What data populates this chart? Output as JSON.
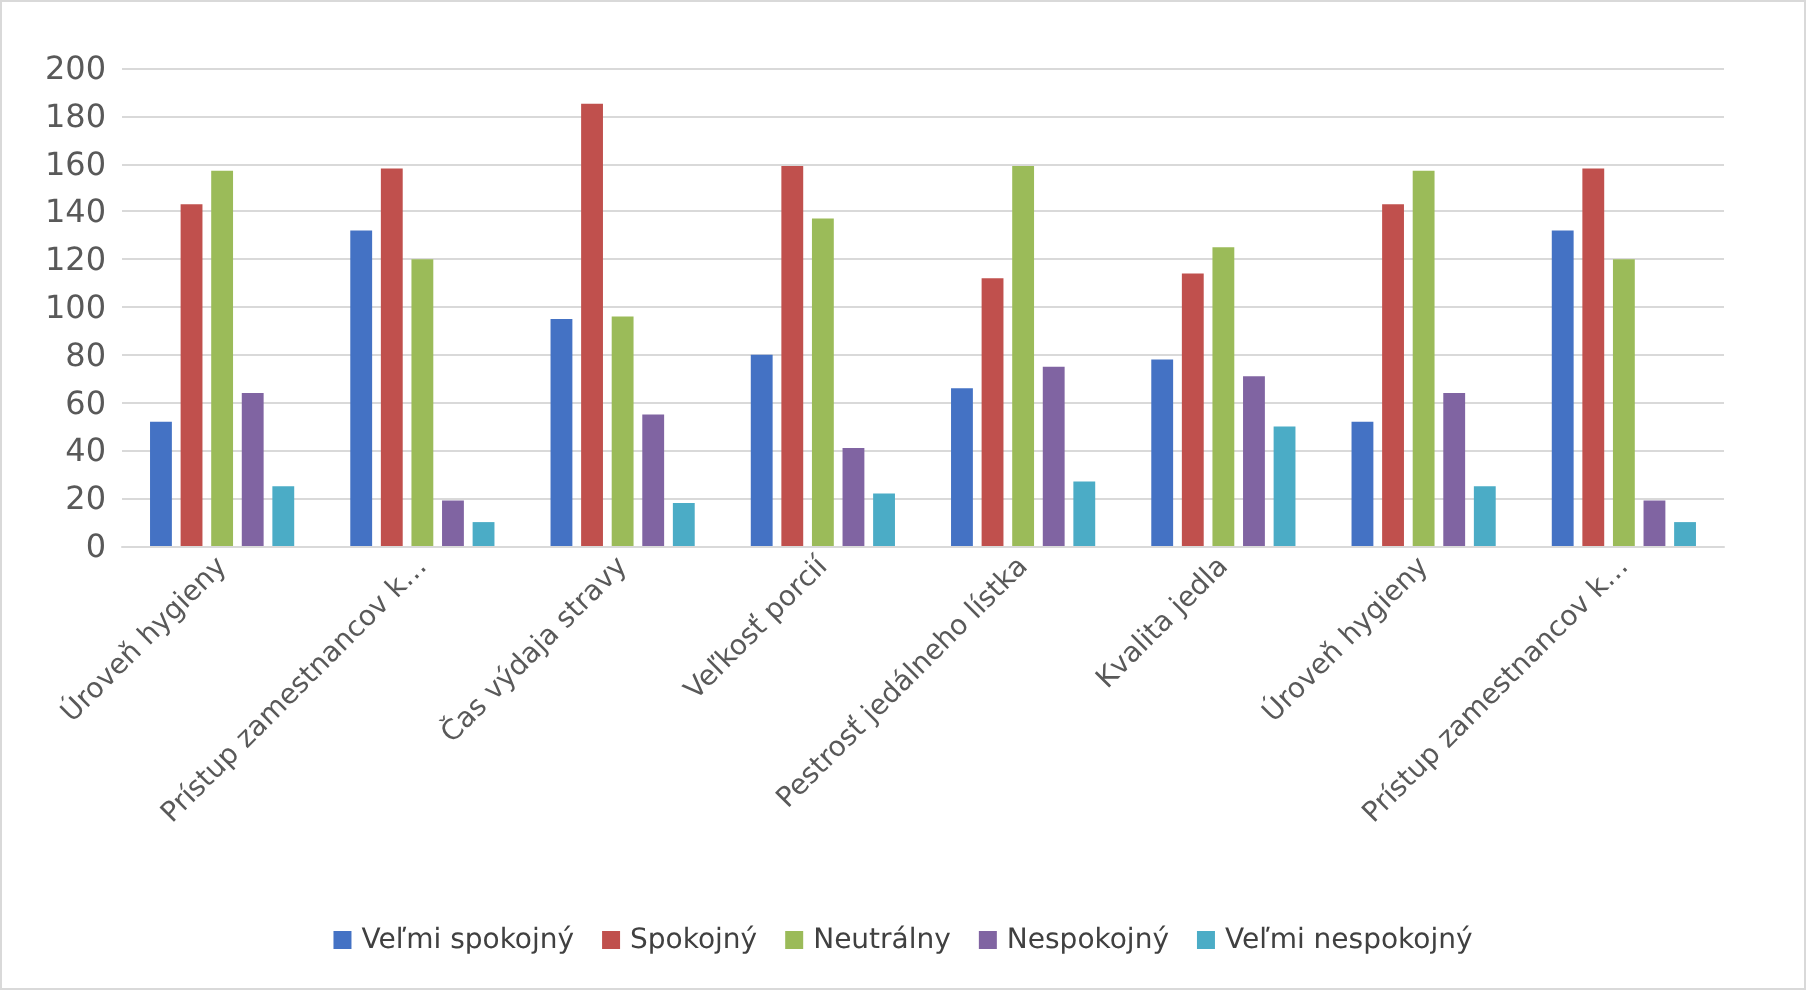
{
  "chart_data": {
    "type": "bar",
    "categories": [
      "Úroveň hygieny",
      "Prístup zamestnancov k…",
      "Čas výdaja stravy",
      "Veľkosť porcií",
      "Pestrosť jedálneho lístka",
      "Kvalita jedla",
      "Úroveň hygieny",
      "Prístup zamestnancov k…"
    ],
    "series": [
      {
        "name": "Veľmi spokojný",
        "color": "#4472c4",
        "values": [
          52,
          132,
          95,
          80,
          66,
          78,
          52,
          132
        ]
      },
      {
        "name": "Spokojný",
        "color": "#c0504d",
        "values": [
          143,
          158,
          185,
          159,
          112,
          114,
          143,
          158
        ]
      },
      {
        "name": "Neutrálny",
        "color": "#9bbb59",
        "values": [
          157,
          120,
          96,
          137,
          159,
          125,
          157,
          120
        ]
      },
      {
        "name": "Nespokojný",
        "color": "#8064a2",
        "values": [
          64,
          19,
          55,
          41,
          75,
          71,
          64,
          19
        ]
      },
      {
        "name": "Veľmi nespokojný",
        "color": "#4bacc6",
        "values": [
          25,
          10,
          18,
          22,
          27,
          50,
          25,
          10
        ]
      }
    ],
    "ylim": [
      0,
      200
    ],
    "yticks": [
      0,
      20,
      40,
      60,
      80,
      100,
      120,
      140,
      160,
      180,
      200
    ],
    "grid": "y",
    "legend": "bottom"
  }
}
